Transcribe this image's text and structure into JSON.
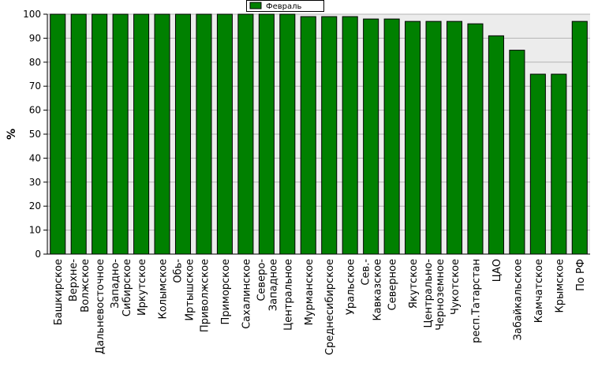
{
  "chart_data": {
    "type": "bar",
    "title": "",
    "xlabel": "",
    "ylabel": "%",
    "ylim": [
      0,
      100
    ],
    "yticks": [
      0,
      10,
      20,
      30,
      40,
      50,
      60,
      70,
      80,
      90,
      100
    ],
    "grid": true,
    "legend_position": "top-center",
    "colors": {
      "bar": "#008000",
      "plot_bg": "#ececec",
      "grid": "#b4b4b4"
    },
    "categories": [
      [
        "Башкирское"
      ],
      [
        "Верхне-",
        "Волжское"
      ],
      [
        "Дальневосточное"
      ],
      [
        "Западно-",
        "Сибирское"
      ],
      [
        "Иркутское"
      ],
      [
        "Колымское"
      ],
      [
        "Обь-",
        "Иртышское"
      ],
      [
        "Приволжское"
      ],
      [
        "Приморское"
      ],
      [
        "Сахалинское"
      ],
      [
        "Северо-",
        "Западное"
      ],
      [
        "Центральное"
      ],
      [
        "Мурманское"
      ],
      [
        "Среднесибирское"
      ],
      [
        "Уральское"
      ],
      [
        "Сев.-",
        "Кавказское"
      ],
      [
        "Северное"
      ],
      [
        "Якутское"
      ],
      [
        "Центрально-",
        "Черноземное"
      ],
      [
        "Чукотское"
      ],
      [
        "респ.Татарстан"
      ],
      [
        "ЦАО"
      ],
      [
        "Забайкальское"
      ],
      [
        "Камчатское"
      ],
      [
        "Крымское"
      ],
      [
        "По РФ"
      ]
    ],
    "series": [
      {
        "name": "Февраль",
        "values": [
          100,
          100,
          100,
          100,
          100,
          100,
          100,
          100,
          100,
          100,
          100,
          100,
          99,
          99,
          99,
          98,
          98,
          97,
          97,
          97,
          96,
          91,
          85,
          75,
          75,
          97
        ]
      }
    ]
  }
}
